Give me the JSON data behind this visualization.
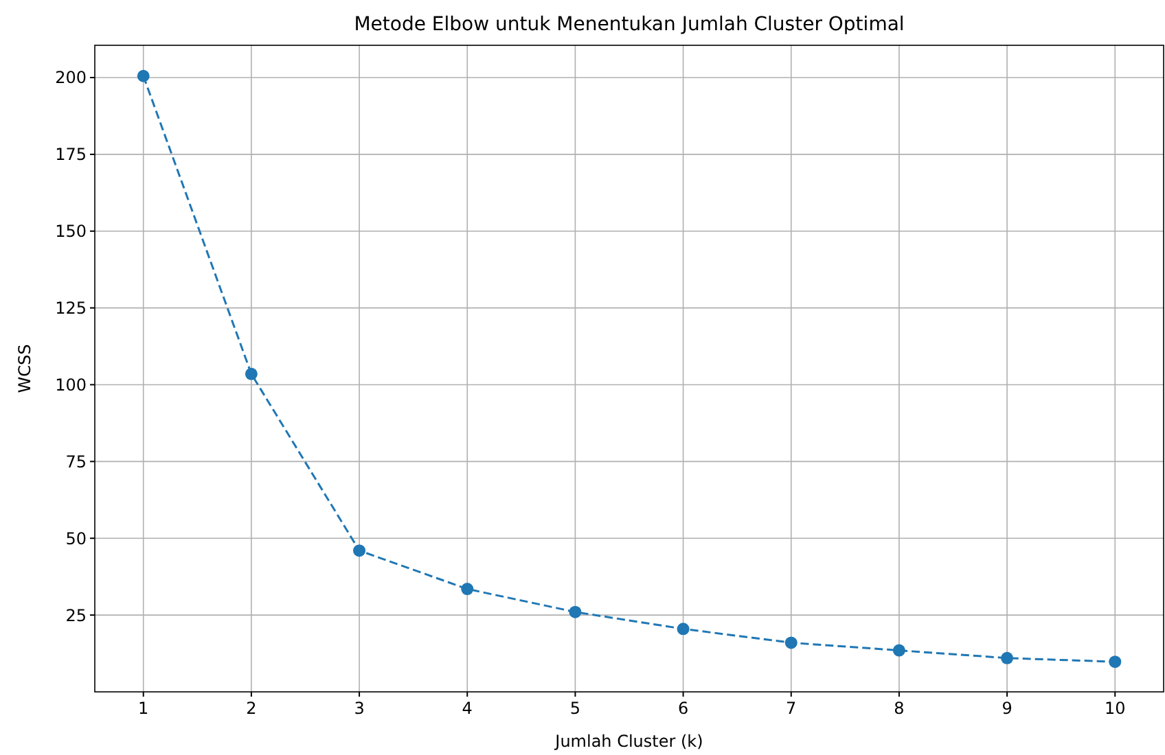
{
  "chart_data": {
    "type": "line",
    "title": "Metode Elbow untuk Menentukan Jumlah Cluster Optimal",
    "xlabel": "Jumlah Cluster (k)",
    "ylabel": "WCSS",
    "x": [
      1,
      2,
      3,
      4,
      5,
      6,
      7,
      8,
      9,
      10
    ],
    "series": [
      {
        "color": "#1f77b4",
        "values": [
          200.5,
          103.5,
          46,
          33.5,
          26,
          20.5,
          16,
          13.5,
          11,
          9.8
        ]
      }
    ],
    "xlim": [
      0.55,
      10.45
    ],
    "ylim": [
      0,
      210.5
    ],
    "xticks": [
      1,
      2,
      3,
      4,
      5,
      6,
      7,
      8,
      9,
      10
    ],
    "yticks": [
      25,
      50,
      75,
      100,
      125,
      150,
      175,
      200
    ],
    "grid": true,
    "marker": "circle",
    "line_style": "dashed"
  }
}
